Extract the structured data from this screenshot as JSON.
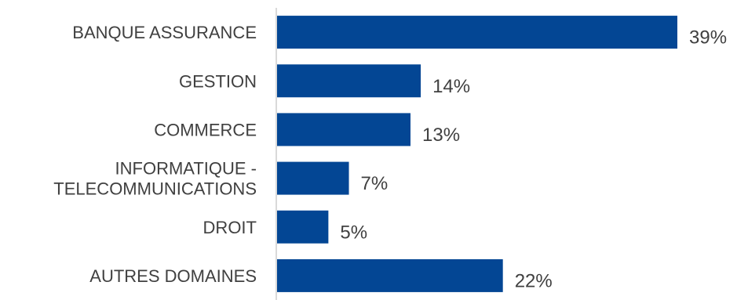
{
  "chart_data": {
    "type": "bar",
    "orientation": "horizontal",
    "title": "",
    "xlabel": "",
    "ylabel": "",
    "categories": [
      [
        "BANQUE ASSURANCE"
      ],
      [
        "GESTION"
      ],
      [
        "COMMERCE"
      ],
      [
        "INFORMATIQUE -",
        "TELECOMMUNICATIONS"
      ],
      [
        "DROIT"
      ],
      [
        "AUTRES DOMAINES"
      ]
    ],
    "values": [
      39,
      14,
      13,
      7,
      5,
      22
    ],
    "value_labels": [
      "39%",
      "14%",
      "13%",
      "7%",
      "5%",
      "22%"
    ],
    "xlim": [
      0,
      39
    ],
    "grid": false,
    "legend": "none",
    "bar_color": "#034694",
    "axis_color": "#d9d9d9"
  }
}
